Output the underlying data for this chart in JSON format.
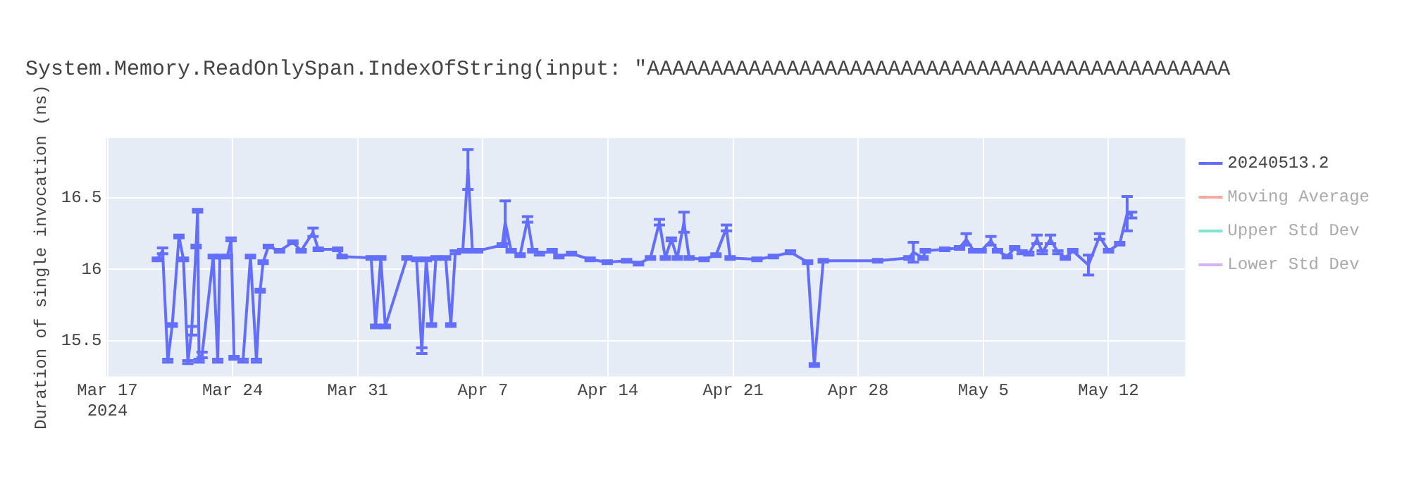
{
  "chart_data": {
    "type": "line",
    "title": "System.Memory.ReadOnlySpan.IndexOfString(input: \"AAAAAAAAAAAAAAAAAAAAAAAAAAAAAAAAAAAAAAAAAAAAAA",
    "ylabel": "Duration of single invocation (ns)",
    "x": [
      "2024-03-19T19:00",
      "2024-03-20T02:00",
      "2024-03-20T09:00",
      "2024-03-20T15:00",
      "2024-03-21T00:00",
      "2024-03-21T06:00",
      "2024-03-21T12:00",
      "2024-03-21T17:00",
      "2024-03-21T23:00",
      "2024-03-22T01:00",
      "2024-03-22T03:00",
      "2024-03-22T07:00",
      "2024-03-22T22:00",
      "2024-03-23T04:00",
      "2024-03-23T07:00",
      "2024-03-23T17:00",
      "2024-03-23T22:00",
      "2024-03-24T02:00",
      "2024-03-24T14:00",
      "2024-03-25T00:00",
      "2024-03-25T08:00",
      "2024-03-25T13:00",
      "2024-03-25T17:00",
      "2024-03-26T00:00",
      "2024-03-26T15:00",
      "2024-03-27T09:00",
      "2024-03-27T20:00",
      "2024-03-28T12:00",
      "2024-03-28T19:00",
      "2024-03-29T21:00",
      "2024-03-30T03:00",
      "2024-03-31T18:00",
      "2024-04-01T00:00",
      "2024-04-01T07:00",
      "2024-04-01T13:00",
      "2024-04-02T18:00",
      "2024-04-03T07:00",
      "2024-04-03T14:00",
      "2024-04-03T20:00",
      "2024-04-04T03:00",
      "2024-04-04T09:00",
      "2024-04-04T22:00",
      "2024-04-05T05:00",
      "2024-04-05T11:00",
      "2024-04-05T21:00",
      "2024-04-06T04:00",
      "2024-04-06T10:00",
      "2024-04-06T17:00",
      "2024-04-08T02:00",
      "2024-04-08T06:00",
      "2024-04-08T14:00",
      "2024-04-09T02:00",
      "2024-04-09T12:00",
      "2024-04-09T19:00",
      "2024-04-10T04:00",
      "2024-04-10T21:00",
      "2024-04-11T06:00",
      "2024-04-11T23:00",
      "2024-04-13T00:00",
      "2024-04-13T23:00",
      "2024-04-15T01:00",
      "2024-04-15T17:00",
      "2024-04-16T09:00",
      "2024-04-16T21:00",
      "2024-04-17T05:00",
      "2024-04-17T13:00",
      "2024-04-17T21:00",
      "2024-04-18T06:00",
      "2024-04-18T13:00",
      "2024-04-19T09:00",
      "2024-04-20T01:00",
      "2024-04-20T15:00",
      "2024-04-20T20:00",
      "2024-04-22T08:00",
      "2024-04-23T06:00",
      "2024-04-24T05:00",
      "2024-04-25T04:00",
      "2024-04-25T13:00",
      "2024-04-26T01:00",
      "2024-04-29T02:00",
      "2024-04-30T20:00",
      "2024-05-01T02:00",
      "2024-05-01T15:00",
      "2024-05-01T18:00",
      "2024-05-02T20:00",
      "2024-05-03T16:00",
      "2024-05-04T01:00",
      "2024-05-04T11:00",
      "2024-05-04T21:00",
      "2024-05-05T10:00",
      "2024-05-05T19:00",
      "2024-05-06T08:00",
      "2024-05-06T18:00",
      "2024-05-07T04:00",
      "2024-05-07T13:00",
      "2024-05-08T00:00",
      "2024-05-08T07:00",
      "2024-05-08T18:00",
      "2024-05-09T04:00",
      "2024-05-09T14:00",
      "2024-05-10T00:00",
      "2024-05-10T21:00",
      "2024-05-11T12:00",
      "2024-05-12T00:00",
      "2024-05-12T15:00",
      "2024-05-13T01:00",
      "2024-05-13T07:00"
    ],
    "series": [
      {
        "name": "20240513.2",
        "color": "#636efa",
        "values": [
          16.07,
          16.13,
          15.36,
          15.61,
          16.23,
          16.07,
          15.35,
          15.57,
          16.16,
          16.41,
          15.36,
          15.4,
          16.09,
          15.36,
          16.09,
          16.09,
          16.21,
          15.38,
          15.36,
          16.09,
          15.36,
          15.85,
          16.05,
          16.16,
          16.13,
          16.19,
          16.13,
          16.26,
          16.14,
          16.14,
          16.09,
          16.08,
          15.6,
          16.08,
          15.6,
          16.08,
          16.07,
          15.43,
          16.07,
          15.61,
          16.08,
          16.08,
          15.61,
          16.12,
          16.13,
          16.7,
          16.13,
          16.13,
          16.17,
          16.33,
          16.13,
          16.1,
          16.35,
          16.13,
          16.11,
          16.13,
          16.09,
          16.11,
          16.07,
          16.05,
          16.06,
          16.04,
          16.08,
          16.33,
          16.08,
          16.21,
          16.08,
          16.33,
          16.08,
          16.07,
          16.1,
          16.29,
          16.08,
          16.07,
          16.09,
          16.12,
          16.05,
          15.33,
          16.06,
          16.06,
          16.08,
          16.12,
          16.08,
          16.13,
          16.14,
          16.15,
          16.21,
          16.13,
          16.13,
          16.2,
          16.13,
          16.09,
          16.15,
          16.12,
          16.11,
          16.21,
          16.12,
          16.21,
          16.12,
          16.08,
          16.13,
          16.03,
          16.23,
          16.13,
          16.18,
          16.39,
          16.38
        ],
        "errors": [
          0.01,
          0.02,
          0.01,
          0.01,
          0.01,
          0.01,
          0.01,
          0.03,
          0.01,
          0.01,
          0.01,
          0.02,
          0.01,
          0.01,
          0.01,
          0.01,
          0.01,
          0.01,
          0.01,
          0.01,
          0.01,
          0.01,
          0.01,
          0.01,
          0.01,
          0.01,
          0.01,
          0.03,
          0.01,
          0.01,
          0.01,
          0.01,
          0.01,
          0.01,
          0.01,
          0.01,
          0.01,
          0.02,
          0.01,
          0.01,
          0.01,
          0.01,
          0.01,
          0.01,
          0.01,
          0.14,
          0.01,
          0.01,
          0.01,
          0.15,
          0.01,
          0.01,
          0.02,
          0.01,
          0.01,
          0.01,
          0.01,
          0.01,
          0.01,
          0.01,
          0.01,
          0.01,
          0.01,
          0.02,
          0.01,
          0.01,
          0.01,
          0.07,
          0.01,
          0.01,
          0.01,
          0.02,
          0.01,
          0.01,
          0.01,
          0.01,
          0.01,
          0.01,
          0.01,
          0.01,
          0.01,
          0.07,
          0.01,
          0.01,
          0.01,
          0.01,
          0.04,
          0.01,
          0.01,
          0.03,
          0.01,
          0.01,
          0.01,
          0.01,
          0.01,
          0.03,
          0.01,
          0.03,
          0.01,
          0.01,
          0.01,
          0.07,
          0.02,
          0.01,
          0.01,
          0.12,
          0.02
        ]
      },
      {
        "name": "Moving Average",
        "color": "#ef553b",
        "values": [
          null,
          null,
          null,
          null,
          null,
          null,
          null,
          null,
          null,
          null,
          null,
          null,
          null,
          null,
          null,
          null,
          null,
          null,
          null,
          null,
          null,
          null,
          null,
          null,
          null,
          null,
          null,
          null,
          null,
          null,
          null,
          null,
          null,
          null,
          null,
          null,
          null,
          null,
          null,
          null,
          null,
          null,
          null,
          null,
          null,
          null,
          null,
          null,
          null,
          null,
          null,
          null,
          null,
          null,
          null,
          null,
          null,
          null,
          null,
          null,
          null,
          null,
          null,
          null,
          null,
          null,
          null,
          null,
          null,
          null,
          null,
          null,
          null,
          null,
          null,
          null,
          null,
          null,
          null,
          null,
          null,
          null,
          null,
          null,
          null,
          null,
          null,
          null,
          null,
          null,
          null,
          null,
          null,
          null,
          null,
          null,
          null,
          null,
          null,
          null,
          null,
          null,
          null,
          null,
          null,
          null,
          null
        ]
      },
      {
        "name": "Upper Std Dev",
        "color": "#00cc96",
        "values": [
          null,
          null,
          null,
          null,
          null,
          null,
          null,
          null,
          null,
          null,
          null,
          null,
          null,
          null,
          null,
          null,
          null,
          null,
          null,
          null,
          null,
          null,
          null,
          null,
          null,
          null,
          null,
          null,
          null,
          null,
          null,
          null,
          null,
          null,
          null,
          null,
          null,
          null,
          null,
          null,
          null,
          null,
          null,
          null,
          null,
          null,
          null,
          null,
          null,
          null,
          null,
          null,
          null,
          null,
          null,
          null,
          null,
          null,
          null,
          null,
          null,
          null,
          null,
          null,
          null,
          null,
          null,
          null,
          null,
          null,
          null,
          null,
          null,
          null,
          null,
          null,
          null,
          null,
          null,
          null,
          null,
          null,
          null,
          null,
          null,
          null,
          null,
          null,
          null,
          null,
          null,
          null,
          null,
          null,
          null,
          null,
          null,
          null,
          null,
          null,
          null,
          null,
          null,
          null,
          null,
          null,
          null
        ]
      },
      {
        "name": "Lower Std Dev",
        "color": "#ab63fa",
        "values": [
          null,
          null,
          null,
          null,
          null,
          null,
          null,
          null,
          null,
          null,
          null,
          null,
          null,
          null,
          null,
          null,
          null,
          null,
          null,
          null,
          null,
          null,
          null,
          null,
          null,
          null,
          null,
          null,
          null,
          null,
          null,
          null,
          null,
          null,
          null,
          null,
          null,
          null,
          null,
          null,
          null,
          null,
          null,
          null,
          null,
          null,
          null,
          null,
          null,
          null,
          null,
          null,
          null,
          null,
          null,
          null,
          null,
          null,
          null,
          null,
          null,
          null,
          null,
          null,
          null,
          null,
          null,
          null,
          null,
          null,
          null,
          null,
          null,
          null,
          null,
          null,
          null,
          null,
          null,
          null,
          null,
          null,
          null,
          null,
          null,
          null,
          null,
          null,
          null,
          null,
          null,
          null,
          null,
          null,
          null,
          null,
          null,
          null,
          null,
          null,
          null,
          null,
          null,
          null,
          null,
          null,
          null
        ]
      }
    ],
    "xlim": [
      "2024-03-16T22:00",
      "2024-05-16T07:00"
    ],
    "xticks": [
      {
        "value": "2024-03-17T00:00",
        "label": "Mar 17\n2024"
      },
      {
        "value": "2024-03-24T00:00",
        "label": "Mar 24"
      },
      {
        "value": "2024-03-31T00:00",
        "label": "Mar 31"
      },
      {
        "value": "2024-04-07T00:00",
        "label": "Apr 7"
      },
      {
        "value": "2024-04-14T00:00",
        "label": "Apr 14"
      },
      {
        "value": "2024-04-21T00:00",
        "label": "Apr 21"
      },
      {
        "value": "2024-04-28T00:00",
        "label": "Apr 28"
      },
      {
        "value": "2024-05-05T00:00",
        "label": "May 5"
      },
      {
        "value": "2024-05-12T00:00",
        "label": "May 12"
      }
    ],
    "ylim": [
      15.25,
      16.92
    ],
    "yticks": [
      15.5,
      16,
      16.5
    ],
    "grid": true,
    "legend": "right",
    "marker": "none"
  }
}
